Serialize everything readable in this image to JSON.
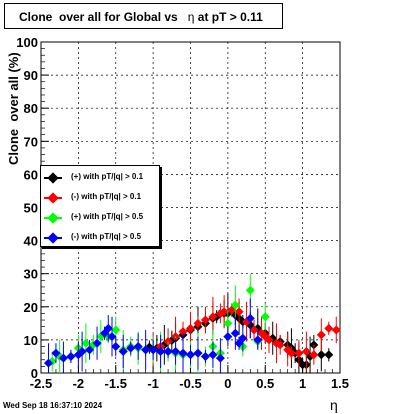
{
  "chart_data": {
    "type": "scatter",
    "title_parts": [
      "Clone  over all for Global vs",
      "η",
      "at pT > 0.11"
    ],
    "xlabel": "η",
    "ylabel": "Clone  over all (%)",
    "xlim": [
      -2.5,
      1.5
    ],
    "ylim": [
      0,
      100
    ],
    "x_ticks": [
      "-2.5",
      "-2",
      "-1.5",
      "-1",
      "-0.5",
      "0",
      "0.5",
      "1",
      "1.5"
    ],
    "x_tick_values": [
      -2.5,
      -2,
      -1.5,
      -1,
      -0.5,
      0,
      0.5,
      1,
      1.5
    ],
    "y_ticks": [
      "0",
      "10",
      "20",
      "30",
      "40",
      "50",
      "60",
      "70",
      "80",
      "90",
      "100"
    ],
    "y_tick_values": [
      0,
      10,
      20,
      30,
      40,
      50,
      60,
      70,
      80,
      90,
      100
    ],
    "grid": true,
    "legend_position": "middle-left",
    "timestamp": "Wed Sep 18 16:37:10 2024",
    "series": [
      {
        "name": "(+) with pT/|q| > 0.1",
        "color": "#000000",
        "points": [
          [
            -1.05,
            7.8
          ],
          [
            -0.95,
            7.5
          ],
          [
            -0.85,
            8.5
          ],
          [
            -0.75,
            9.8
          ],
          [
            -0.7,
            10.5
          ],
          [
            -0.6,
            11.5
          ],
          [
            -0.5,
            13
          ],
          [
            -0.4,
            14
          ],
          [
            -0.3,
            15
          ],
          [
            -0.2,
            16.5
          ],
          [
            -0.15,
            17
          ],
          [
            -0.05,
            18
          ],
          [
            0.0,
            18
          ],
          [
            0.1,
            17.5
          ],
          [
            0.15,
            16.5
          ],
          [
            0.2,
            15.5
          ],
          [
            0.3,
            14.5
          ],
          [
            0.4,
            13.5
          ],
          [
            0.5,
            12
          ],
          [
            0.6,
            10.5
          ],
          [
            0.7,
            9.5
          ],
          [
            0.8,
            8.5
          ],
          [
            0.85,
            7.5
          ],
          [
            0.9,
            6
          ],
          [
            0.95,
            4
          ],
          [
            1.0,
            2.5
          ],
          [
            1.05,
            2.5
          ],
          [
            1.1,
            5
          ],
          [
            1.15,
            8.5
          ],
          [
            1.25,
            5.5
          ],
          [
            1.35,
            5.5
          ]
        ]
      },
      {
        "name": "(-) with pT/|q| > 0.1",
        "color": "#ff0000",
        "points": [
          [
            -1.0,
            7
          ],
          [
            -0.9,
            8
          ],
          [
            -0.8,
            9.5
          ],
          [
            -0.7,
            11
          ],
          [
            -0.6,
            12.5
          ],
          [
            -0.5,
            13.5
          ],
          [
            -0.4,
            15
          ],
          [
            -0.3,
            16
          ],
          [
            -0.2,
            17
          ],
          [
            -0.1,
            18
          ],
          [
            -0.05,
            18.5
          ],
          [
            0.05,
            19
          ],
          [
            0.15,
            18.5
          ],
          [
            0.25,
            15.5
          ],
          [
            0.35,
            13
          ],
          [
            0.45,
            12
          ],
          [
            0.5,
            11
          ],
          [
            0.55,
            10
          ],
          [
            0.65,
            9
          ],
          [
            0.7,
            8.5
          ],
          [
            0.8,
            7
          ],
          [
            0.85,
            6
          ],
          [
            0.95,
            6
          ],
          [
            1.05,
            6.5
          ],
          [
            1.15,
            5.5
          ],
          [
            1.25,
            11.5
          ],
          [
            1.35,
            13.5
          ],
          [
            1.45,
            13
          ]
        ]
      },
      {
        "name": "(+) with pT/|q| > 0.5",
        "color": "#00ff00",
        "points": [
          [
            -2.35,
            3.5
          ],
          [
            -2.25,
            5
          ],
          [
            -2.1,
            5
          ],
          [
            -2.0,
            7.5
          ],
          [
            -1.9,
            9
          ],
          [
            -1.8,
            8.5
          ],
          [
            -1.7,
            11
          ],
          [
            -1.6,
            11
          ],
          [
            -1.5,
            13
          ],
          [
            -1.4,
            7
          ],
          [
            -1.3,
            8
          ],
          [
            -1.2,
            7.5
          ],
          [
            -1.1,
            7
          ],
          [
            -1.0,
            7
          ],
          [
            -0.9,
            6.5
          ],
          [
            -0.8,
            6.5
          ],
          [
            -0.7,
            6
          ],
          [
            -0.6,
            5.5
          ],
          [
            -0.5,
            5.5
          ],
          [
            -0.4,
            6
          ],
          [
            -0.3,
            5
          ],
          [
            -0.2,
            8
          ],
          [
            -0.1,
            6
          ],
          [
            0.0,
            15
          ],
          [
            0.1,
            20.5
          ],
          [
            0.2,
            8
          ],
          [
            0.3,
            25
          ],
          [
            0.4,
            9.5
          ],
          [
            0.5,
            17
          ]
        ]
      },
      {
        "name": "(-) with pT/|q| > 0.5",
        "color": "#0000ff",
        "points": [
          [
            -2.4,
            3
          ],
          [
            -2.3,
            6
          ],
          [
            -2.2,
            4.5
          ],
          [
            -2.1,
            5
          ],
          [
            -2.0,
            5.5
          ],
          [
            -1.95,
            6.5
          ],
          [
            -1.85,
            7
          ],
          [
            -1.75,
            9
          ],
          [
            -1.65,
            12
          ],
          [
            -1.6,
            13.5
          ],
          [
            -1.55,
            11
          ],
          [
            -1.5,
            8
          ],
          [
            -1.4,
            6.5
          ],
          [
            -1.3,
            7.5
          ],
          [
            -1.2,
            8
          ],
          [
            -1.1,
            7
          ],
          [
            -1.0,
            7
          ],
          [
            -0.9,
            6.5
          ],
          [
            -0.8,
            6.5
          ],
          [
            -0.7,
            6.5
          ],
          [
            -0.6,
            6
          ],
          [
            -0.5,
            5.5
          ],
          [
            -0.4,
            6
          ],
          [
            -0.3,
            5
          ],
          [
            -0.2,
            5.5
          ],
          [
            -0.1,
            4.5
          ],
          [
            0.0,
            11
          ],
          [
            0.1,
            12
          ],
          [
            0.15,
            9
          ],
          [
            0.2,
            10.5
          ],
          [
            0.3,
            16.5
          ],
          [
            0.4,
            10
          ]
        ]
      }
    ]
  }
}
